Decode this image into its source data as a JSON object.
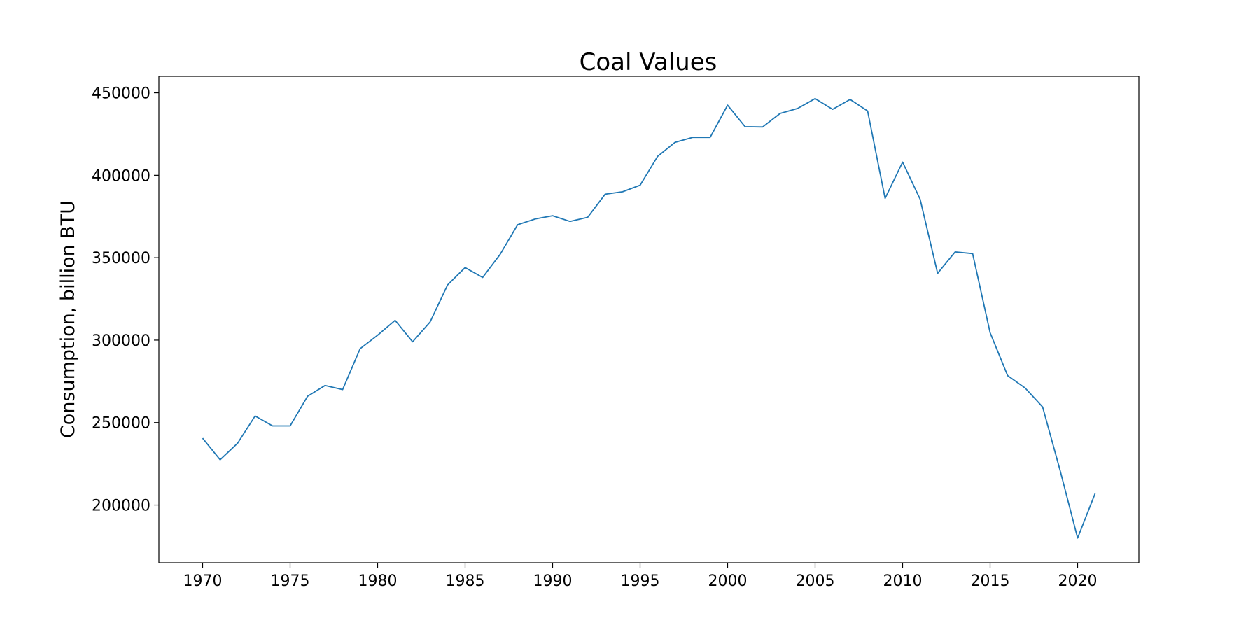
{
  "chart_data": {
    "type": "line",
    "title": "Coal Values",
    "xlabel": "",
    "ylabel": "Consumption, billion BTU",
    "xlim": [
      1967.5,
      2023.5
    ],
    "ylim": [
      165000,
      460000
    ],
    "x_ticks": [
      1970,
      1975,
      1980,
      1985,
      1990,
      1995,
      2000,
      2005,
      2010,
      2015,
      2020
    ],
    "y_ticks": [
      200000,
      250000,
      300000,
      350000,
      400000,
      450000
    ],
    "grid": false,
    "legend": "none",
    "line_color": "#1f77b4",
    "series": [
      {
        "x": [
          1970,
          1971,
          1972,
          1973,
          1974,
          1975,
          1976,
          1977,
          1978,
          1979,
          1980,
          1981,
          1982,
          1983,
          1984,
          1985,
          1986,
          1987,
          1988,
          1989,
          1990,
          1991,
          1992,
          1993,
          1994,
          1995,
          1996,
          1997,
          1998,
          1999,
          2000,
          2001,
          2002,
          2003,
          2004,
          2005,
          2006,
          2007,
          2008,
          2009,
          2010,
          2011,
          2012,
          2013,
          2014,
          2015,
          2016,
          2017,
          2018,
          2019,
          2020,
          2021
        ],
        "values": [
          240500,
          227500,
          237500,
          254000,
          248000,
          248000,
          266000,
          272500,
          270000,
          294800,
          303000,
          312000,
          299000,
          311000,
          333500,
          344000,
          338000,
          352000,
          370000,
          373500,
          375500,
          372000,
          374500,
          388500,
          390000,
          394000,
          411500,
          420000,
          423000,
          423000,
          442500,
          429500,
          429300,
          437500,
          440500,
          446500,
          440000,
          446000,
          439000,
          386000,
          408000,
          385500,
          340500,
          353500,
          352500,
          304500,
          278500,
          271000,
          259500,
          221000,
          180000,
          207000
        ]
      }
    ]
  }
}
